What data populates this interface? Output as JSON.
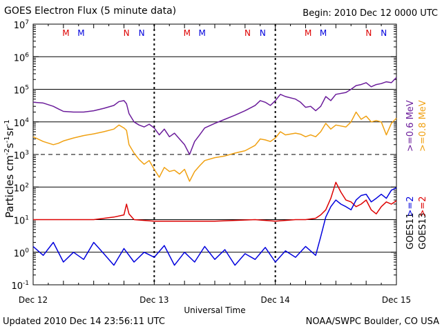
{
  "header": {
    "title": "GOES Electron Flux (5 minute data)",
    "begin": "Begin: 2010 Dec 12 0000 UTC"
  },
  "footer": {
    "updated": "Updated 2010 Dec 14 23:56:11 UTC",
    "credit": "NOAA/SWPC Boulder, CO USA"
  },
  "chart_data": {
    "type": "line",
    "title": "GOES Electron Flux (5 minute data)",
    "xlabel": "Universal Time",
    "ylabel": "Particles cm-2s-1sr-1",
    "ylabel_parts": [
      "Particles cm",
      "-2",
      "s",
      "-1",
      "sr",
      "-1"
    ],
    "yscale": "log",
    "ylim": [
      0.1,
      10000000
    ],
    "y_ticks": [
      {
        "value": 0.1,
        "exp": "-1"
      },
      {
        "value": 1,
        "exp": "0"
      },
      {
        "value": 10,
        "exp": "1"
      },
      {
        "value": 100,
        "exp": "2"
      },
      {
        "value": 1000,
        "exp": "3"
      },
      {
        "value": 10000,
        "exp": "4"
      },
      {
        "value": 100000,
        "exp": "5"
      },
      {
        "value": 1000000,
        "exp": "6"
      },
      {
        "value": 10000000,
        "exp": "7"
      }
    ],
    "xlim": [
      0,
      72
    ],
    "x_unit": "hours since 2010 Dec 12 0000 UTC",
    "x_ticks": [
      {
        "value": 0,
        "label": "Dec 12"
      },
      {
        "value": 24,
        "label": "Dec 13"
      },
      {
        "value": 48,
        "label": "Dec 14"
      },
      {
        "value": 72,
        "label": "Dec 15"
      }
    ],
    "grid": {
      "major_decades": [
        1,
        10,
        100,
        10000,
        100000,
        1000000
      ],
      "dashed_levels": [
        1000
      ]
    },
    "day_markers": [
      24,
      48
    ],
    "local_time_markers": [
      {
        "x": 6.5,
        "label": "M",
        "color": "#dd0000"
      },
      {
        "x": 9.5,
        "label": "M",
        "color": "#0000dd"
      },
      {
        "x": 18.5,
        "label": "N",
        "color": "#dd0000"
      },
      {
        "x": 21.5,
        "label": "N",
        "color": "#0000dd"
      },
      {
        "x": 30.5,
        "label": "M",
        "color": "#dd0000"
      },
      {
        "x": 33.5,
        "label": "M",
        "color": "#0000dd"
      },
      {
        "x": 42.5,
        "label": "N",
        "color": "#dd0000"
      },
      {
        "x": 45.5,
        "label": "N",
        "color": "#0000dd"
      },
      {
        "x": 54.5,
        "label": "M",
        "color": "#dd0000"
      },
      {
        "x": 57.5,
        "label": "M",
        "color": "#0000dd"
      },
      {
        "x": 66.5,
        "label": "N",
        "color": "#dd0000"
      },
      {
        "x": 69.5,
        "label": "N",
        "color": "#0000dd"
      }
    ],
    "legend_right": [
      {
        "label": "GOES11",
        "color": "#000000",
        "col": 0,
        "y_from": 1
      },
      {
        "label": ">=2",
        "color": "#0000dd",
        "col": 0,
        "y_from": 10
      },
      {
        "label": ">=0.6  MeV",
        "color": "#6a1b9a",
        "col": 0,
        "y_from": 1000
      },
      {
        "label": "GOES13",
        "color": "#000000",
        "col": 1,
        "y_from": 1
      },
      {
        "label": ">=2",
        "color": "#dd0000",
        "col": 1,
        "y_from": 10
      },
      {
        "label": ">=0.8  MeV",
        "color": "#f0a010",
        "col": 1,
        "y_from": 1000
      }
    ],
    "series": [
      {
        "name": ">=0.6 MeV",
        "color": "#6a1b9a",
        "x": [
          0,
          2,
          4,
          5,
          6,
          8,
          10,
          12,
          14,
          16,
          17,
          18,
          18.5,
          19,
          20,
          21,
          22,
          23,
          24,
          25,
          26,
          27,
          28,
          29,
          30,
          31,
          32,
          33,
          34,
          36,
          38,
          40,
          42,
          44,
          45,
          46,
          47,
          48,
          49,
          50,
          52,
          53,
          54,
          55,
          56,
          57,
          58,
          59,
          60,
          62,
          63,
          64,
          65,
          66,
          67,
          68,
          69,
          70,
          71,
          72
        ],
        "y": [
          40000,
          38000,
          30000,
          25000,
          21000,
          20000,
          20000,
          22000,
          26000,
          32000,
          42000,
          45000,
          36000,
          18000,
          10000,
          8000,
          7000,
          8500,
          6500,
          4000,
          6000,
          3500,
          4500,
          3000,
          2000,
          1000,
          2500,
          4000,
          6500,
          9000,
          12000,
          16000,
          22000,
          32000,
          45000,
          40000,
          32000,
          45000,
          70000,
          60000,
          50000,
          40000,
          28000,
          30000,
          22000,
          30000,
          60000,
          45000,
          70000,
          80000,
          100000,
          130000,
          140000,
          160000,
          120000,
          140000,
          150000,
          170000,
          160000,
          230000
        ]
      },
      {
        "name": ">=0.8 MeV",
        "color": "#f0a010",
        "x": [
          0,
          2,
          4,
          5,
          6,
          8,
          10,
          12,
          14,
          16,
          17,
          18,
          18.5,
          19,
          20,
          21,
          22,
          23,
          24,
          25,
          26,
          27,
          28,
          29,
          30,
          31,
          32,
          33,
          34,
          36,
          38,
          40,
          42,
          44,
          45,
          46,
          47,
          48,
          49,
          50,
          52,
          53,
          54,
          55,
          56,
          57,
          58,
          59,
          60,
          62,
          63,
          64,
          65,
          66,
          67,
          68,
          69,
          70,
          71,
          72
        ],
        "y": [
          3500,
          2500,
          2000,
          2200,
          2600,
          3200,
          3800,
          4300,
          5000,
          6000,
          8000,
          6500,
          5500,
          2000,
          1100,
          700,
          500,
          650,
          350,
          200,
          400,
          300,
          330,
          250,
          350,
          150,
          300,
          450,
          650,
          800,
          900,
          1100,
          1300,
          1900,
          3000,
          2800,
          2500,
          3200,
          5000,
          4000,
          4500,
          4200,
          3500,
          4000,
          3500,
          5000,
          9000,
          6000,
          8000,
          7000,
          10000,
          20000,
          12000,
          15000,
          10000,
          11000,
          10000,
          4000,
          9000,
          13000
        ]
      },
      {
        "name": "GOES13 >=2 MeV",
        "color": "#dd0000",
        "x": [
          0,
          4,
          8,
          12,
          16,
          18,
          18.5,
          19,
          20,
          24,
          28,
          32,
          36,
          40,
          44,
          48,
          50,
          52,
          54,
          56,
          57,
          58,
          59,
          60,
          61,
          62,
          63,
          64,
          65,
          66,
          67,
          68,
          69,
          70,
          71,
          72
        ],
        "y": [
          10,
          10,
          10,
          10,
          12,
          14,
          30,
          15,
          10,
          9,
          9,
          9,
          9,
          9.5,
          10,
          9,
          9.5,
          10,
          10,
          11,
          14,
          20,
          45,
          140,
          70,
          40,
          35,
          25,
          30,
          40,
          20,
          15,
          25,
          35,
          30,
          38
        ]
      },
      {
        "name": "GOES11 >=2 MeV",
        "color": "#0000dd",
        "x": [
          0,
          2,
          4,
          6,
          8,
          10,
          12,
          14,
          16,
          18,
          20,
          22,
          24,
          26,
          28,
          30,
          32,
          34,
          36,
          38,
          40,
          42,
          44,
          46,
          48,
          50,
          52,
          54,
          56,
          57,
          58,
          59,
          60,
          61,
          62,
          63,
          64,
          65,
          66,
          67,
          68,
          69,
          70,
          71,
          72
        ],
        "y": [
          1.5,
          0.8,
          2,
          0.5,
          1,
          0.6,
          2,
          0.9,
          0.4,
          1.3,
          0.5,
          1,
          0.7,
          1.6,
          0.4,
          1,
          0.5,
          1.5,
          0.6,
          1.2,
          0.4,
          0.9,
          0.6,
          1.4,
          0.5,
          1.1,
          0.7,
          1.5,
          0.8,
          3,
          12,
          25,
          40,
          30,
          25,
          20,
          40,
          55,
          60,
          35,
          45,
          60,
          45,
          80,
          95
        ]
      }
    ]
  }
}
